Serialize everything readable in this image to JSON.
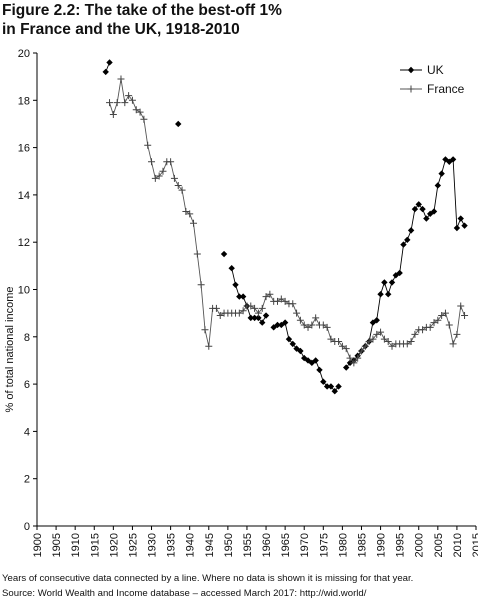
{
  "figure": {
    "title_line1": "Figure 2.2: The take of the best-off 1%",
    "title_line2": "in France and the UK, 1918-2010",
    "note": "Years of consecutive data connected by a line. Where no data is shown it is missing for that year.",
    "source": "Source: World Wealth and Income database – accessed March 2017: http://wid.world/"
  },
  "chart_data": {
    "type": "line",
    "title": "Figure 2.2: The take of the best-off 1% in France and the UK, 1918-2010",
    "xlabel": "",
    "ylabel": "% of total national income",
    "xlim": [
      1900,
      2015
    ],
    "ylim": [
      0,
      20
    ],
    "xticks": [
      1900,
      1905,
      1910,
      1915,
      1920,
      1925,
      1930,
      1935,
      1940,
      1945,
      1950,
      1955,
      1960,
      1965,
      1970,
      1975,
      1980,
      1985,
      1990,
      1995,
      2000,
      2005,
      2010,
      2015
    ],
    "yticks": [
      0,
      2,
      4,
      6,
      8,
      10,
      12,
      14,
      16,
      18,
      20
    ],
    "legend_position": "top-right",
    "grid": false,
    "series": [
      {
        "name": "UK",
        "color": "#000000",
        "marker": "diamond",
        "segments": [
          [
            [
              1918,
              19.2
            ],
            [
              1919,
              19.6
            ]
          ],
          [
            [
              1937,
              17.0
            ]
          ],
          [
            [
              1949,
              11.5
            ]
          ],
          [
            [
              1951,
              10.9
            ],
            [
              1952,
              10.2
            ],
            [
              1953,
              9.7
            ],
            [
              1954,
              9.7
            ],
            [
              1955,
              9.3
            ],
            [
              1956,
              8.8
            ],
            [
              1957,
              8.8
            ],
            [
              1958,
              8.8
            ],
            [
              1959,
              8.6
            ],
            [
              1960,
              8.9
            ]
          ],
          [
            [
              1962,
              8.4
            ],
            [
              1963,
              8.5
            ],
            [
              1964,
              8.5
            ],
            [
              1965,
              8.6
            ],
            [
              1966,
              7.9
            ],
            [
              1967,
              7.7
            ],
            [
              1968,
              7.5
            ],
            [
              1969,
              7.4
            ],
            [
              1970,
              7.1
            ],
            [
              1971,
              7.0
            ],
            [
              1972,
              6.9
            ],
            [
              1973,
              7.0
            ],
            [
              1974,
              6.6
            ],
            [
              1975,
              6.1
            ],
            [
              1976,
              5.9
            ],
            [
              1977,
              5.9
            ],
            [
              1978,
              5.7
            ],
            [
              1979,
              5.9
            ]
          ],
          [
            [
              1981,
              6.7
            ],
            [
              1982,
              6.9
            ],
            [
              1983,
              7.0
            ],
            [
              1984,
              7.2
            ],
            [
              1985,
              7.4
            ],
            [
              1986,
              7.6
            ],
            [
              1987,
              7.8
            ],
            [
              1988,
              8.6
            ],
            [
              1989,
              8.7
            ],
            [
              1990,
              9.8
            ],
            [
              1991,
              10.3
            ],
            [
              1992,
              9.8
            ],
            [
              1993,
              10.3
            ],
            [
              1994,
              10.6
            ],
            [
              1995,
              10.7
            ],
            [
              1996,
              11.9
            ],
            [
              1997,
              12.1
            ],
            [
              1998,
              12.5
            ],
            [
              1999,
              13.4
            ],
            [
              2000,
              13.6
            ],
            [
              2001,
              13.4
            ],
            [
              2002,
              13.0
            ],
            [
              2003,
              13.2
            ],
            [
              2004,
              13.3
            ],
            [
              2005,
              14.4
            ],
            [
              2006,
              14.9
            ],
            [
              2007,
              15.5
            ],
            [
              2008,
              15.4
            ],
            [
              2009,
              15.5
            ],
            [
              2010,
              12.6
            ],
            [
              2011,
              13.0
            ],
            [
              2012,
              12.7
            ]
          ]
        ]
      },
      {
        "name": "France",
        "color": "#333333",
        "marker": "plus",
        "segments": [
          [
            [
              1919,
              17.9
            ],
            [
              1920,
              17.4
            ],
            [
              1921,
              17.9
            ],
            [
              1922,
              18.9
            ],
            [
              1923,
              17.9
            ],
            [
              1924,
              18.2
            ],
            [
              1925,
              18.0
            ],
            [
              1926,
              17.6
            ],
            [
              1927,
              17.5
            ],
            [
              1928,
              17.2
            ],
            [
              1929,
              16.1
            ],
            [
              1930,
              15.4
            ],
            [
              1931,
              14.7
            ],
            [
              1932,
              14.8
            ],
            [
              1933,
              15.0
            ],
            [
              1934,
              15.4
            ],
            [
              1935,
              15.4
            ],
            [
              1936,
              14.7
            ],
            [
              1937,
              14.4
            ],
            [
              1938,
              14.2
            ],
            [
              1939,
              13.3
            ],
            [
              1940,
              13.2
            ],
            [
              1941,
              12.8
            ],
            [
              1942,
              11.5
            ],
            [
              1943,
              10.2
            ],
            [
              1944,
              8.3
            ],
            [
              1945,
              7.6
            ],
            [
              1946,
              9.2
            ],
            [
              1947,
              9.2
            ],
            [
              1948,
              8.9
            ],
            [
              1949,
              9.0
            ],
            [
              1950,
              9.0
            ],
            [
              1951,
              9.0
            ],
            [
              1952,
              9.0
            ],
            [
              1953,
              9.0
            ],
            [
              1954,
              9.1
            ],
            [
              1955,
              9.3
            ],
            [
              1956,
              9.3
            ],
            [
              1957,
              9.2
            ],
            [
              1958,
              9.0
            ],
            [
              1959,
              9.2
            ],
            [
              1960,
              9.7
            ],
            [
              1961,
              9.8
            ],
            [
              1962,
              9.5
            ],
            [
              1963,
              9.5
            ],
            [
              1964,
              9.6
            ],
            [
              1965,
              9.5
            ],
            [
              1966,
              9.4
            ],
            [
              1967,
              9.4
            ],
            [
              1968,
              9.0
            ],
            [
              1969,
              8.7
            ],
            [
              1970,
              8.5
            ],
            [
              1971,
              8.4
            ],
            [
              1972,
              8.5
            ],
            [
              1973,
              8.8
            ],
            [
              1974,
              8.5
            ],
            [
              1975,
              8.5
            ],
            [
              1976,
              8.4
            ],
            [
              1977,
              7.9
            ],
            [
              1978,
              7.8
            ],
            [
              1979,
              7.8
            ],
            [
              1980,
              7.6
            ],
            [
              1981,
              7.5
            ],
            [
              1982,
              7.1
            ],
            [
              1983,
              6.9
            ],
            [
              1984,
              7.1
            ],
            [
              1985,
              7.4
            ],
            [
              1986,
              7.6
            ],
            [
              1987,
              7.8
            ],
            [
              1988,
              7.9
            ],
            [
              1989,
              8.1
            ],
            [
              1990,
              8.2
            ],
            [
              1991,
              7.9
            ],
            [
              1992,
              7.8
            ],
            [
              1993,
              7.6
            ],
            [
              1994,
              7.7
            ],
            [
              1995,
              7.7
            ],
            [
              1996,
              7.7
            ],
            [
              1997,
              7.7
            ],
            [
              1998,
              7.8
            ],
            [
              1999,
              8.1
            ],
            [
              2000,
              8.3
            ],
            [
              2001,
              8.3
            ],
            [
              2002,
              8.4
            ],
            [
              2003,
              8.4
            ],
            [
              2004,
              8.6
            ],
            [
              2005,
              8.7
            ],
            [
              2006,
              8.9
            ],
            [
              2007,
              9.0
            ],
            [
              2008,
              8.5
            ],
            [
              2009,
              7.7
            ],
            [
              2010,
              8.1
            ],
            [
              2011,
              9.3
            ],
            [
              2012,
              8.9
            ]
          ]
        ]
      }
    ]
  }
}
